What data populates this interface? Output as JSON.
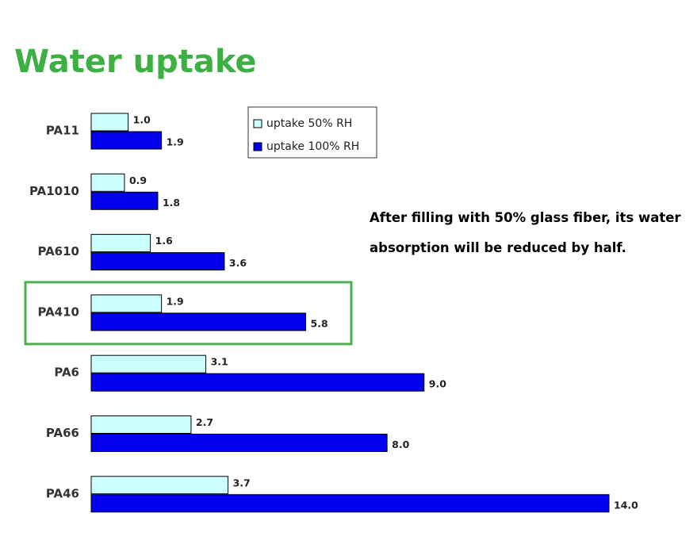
{
  "chart_data": {
    "type": "bar",
    "orientation": "horizontal",
    "title": "Water uptake",
    "annotation": "After filling with 50% glass fiber, its water absorption will be reduced by half.",
    "categories": [
      "PA11",
      "PA1010",
      "PA610",
      "PA410",
      "PA6",
      "PA66",
      "PA46"
    ],
    "series": [
      {
        "name": "uptake 50% RH",
        "color": "#ccffff",
        "values": [
          1.0,
          0.9,
          1.6,
          1.9,
          3.1,
          2.7,
          3.7
        ],
        "value_labels": [
          "1.0",
          "0.9",
          "1.6",
          "1.9",
          "3.1",
          "2.7",
          "3.7"
        ]
      },
      {
        "name": "uptake 100% RH",
        "color": "#0000ee",
        "values": [
          1.9,
          1.8,
          3.6,
          5.8,
          9.0,
          8.0,
          14.0
        ],
        "value_labels": [
          "1.9",
          "1.8",
          "3.6",
          "5.8",
          "9.0",
          "8.0",
          "14.0"
        ]
      }
    ],
    "highlight": "PA410",
    "highlight_color": "#4caf50",
    "title_color": "#3cb043"
  }
}
